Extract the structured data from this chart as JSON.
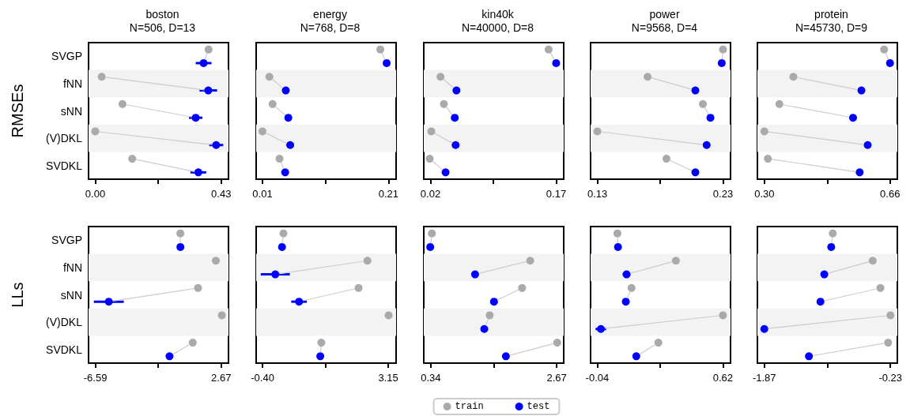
{
  "chart_data": [
    {
      "type": "scatter",
      "title": "boston",
      "subtitle": "N=506, D=13",
      "ylabel": "RMSEs",
      "orientation": "horizontal",
      "marker": "circle",
      "categories": [
        "SVGP",
        "fNN",
        "sNN",
        "(V)DKL",
        "SVDKL"
      ],
      "xlim": [
        -0.023,
        0.455
      ],
      "xticks": [
        {
          "value": 0,
          "label": "0.00"
        },
        {
          "value": 0.215,
          "label": null
        },
        {
          "value": 0.43,
          "label": "0.43"
        }
      ],
      "bands": [
        {
          "axis": "y",
          "from": "fNN",
          "to": "fNN",
          "color": "#f3f3f3"
        },
        {
          "axis": "y",
          "from": "(V)DKL",
          "to": "(V)DKL",
          "color": "#f3f3f3"
        }
      ],
      "series": [
        {
          "color": "#aaaaaa",
          "values": [
            0.387,
            0.022,
            0.093,
            0.0,
            0.126
          ]
        },
        {
          "color": "#0000ff",
          "values": [
            0.37,
            0.386,
            0.343,
            0.413,
            0.352
          ],
          "errors": [
            0.027,
            0.03,
            0.023,
            0.024,
            0.027
          ]
        }
      ]
    },
    {
      "type": "scatter",
      "title": "energy",
      "subtitle": "N=768, D=8",
      "orientation": "horizontal",
      "marker": "circle",
      "tick_labels": "x",
      "categories": [
        "SVGP",
        "fNN",
        "sNN",
        "(V)DKL",
        "SVDKL"
      ],
      "xlim": [
        0.0,
        0.222
      ],
      "xticks": [
        {
          "value": 0.01,
          "label": "0.01"
        },
        {
          "value": 0.11,
          "label": null
        },
        {
          "value": 0.21,
          "label": "0.21"
        }
      ],
      "bands": [
        {
          "axis": "y",
          "from": "fNN",
          "to": "fNN",
          "color": "#f3f3f3"
        },
        {
          "axis": "y",
          "from": "(V)DKL",
          "to": "(V)DKL",
          "color": "#f3f3f3"
        }
      ],
      "series": [
        {
          "color": "#aaaaaa",
          "values": [
            0.197,
            0.021,
            0.026,
            0.01,
            0.037
          ]
        },
        {
          "color": "#0000ff",
          "values": [
            0.207,
            0.047,
            0.051,
            0.054,
            0.046
          ]
        }
      ]
    },
    {
      "type": "scatter",
      "title": "kin40k",
      "subtitle": "N=40000, D=8",
      "orientation": "horizontal",
      "marker": "circle",
      "tick_labels": "x",
      "categories": [
        "SVGP",
        "fNN",
        "sNN",
        "(V)DKL",
        "SVDKL"
      ],
      "xlim": [
        0.012,
        0.179
      ],
      "xticks": [
        {
          "value": 0.02,
          "label": "0.02"
        },
        {
          "value": 0.095,
          "label": null
        },
        {
          "value": 0.17,
          "label": "0.17"
        }
      ],
      "bands": [
        {
          "axis": "y",
          "from": "fNN",
          "to": "fNN",
          "color": "#f3f3f3"
        },
        {
          "axis": "y",
          "from": "(V)DKL",
          "to": "(V)DKL",
          "color": "#f3f3f3"
        }
      ],
      "series": [
        {
          "color": "#aaaaaa",
          "values": [
            0.161,
            0.032,
            0.036,
            0.021,
            0.019
          ]
        },
        {
          "color": "#0000ff",
          "values": [
            0.17,
            0.051,
            0.049,
            0.05,
            0.038
          ]
        }
      ]
    },
    {
      "type": "scatter",
      "title": "power",
      "subtitle": "N=9568, D=4",
      "orientation": "horizontal",
      "marker": "circle",
      "tick_labels": "x",
      "categories": [
        "SVGP",
        "fNN",
        "sNN",
        "(V)DKL",
        "SVDKL"
      ],
      "xlim": [
        0.1246,
        0.236
      ],
      "xticks": [
        {
          "value": 0.13,
          "label": "0.13"
        },
        {
          "value": 0.18,
          "label": null
        },
        {
          "value": 0.23,
          "label": "0.23"
        }
      ],
      "bands": [
        {
          "axis": "y",
          "from": "fNN",
          "to": "fNN",
          "color": "#f3f3f3"
        },
        {
          "axis": "y",
          "from": "(V)DKL",
          "to": "(V)DKL",
          "color": "#f3f3f3"
        }
      ],
      "series": [
        {
          "color": "#aaaaaa",
          "values": [
            0.23,
            0.17,
            0.214,
            0.13,
            0.185
          ]
        },
        {
          "color": "#0000ff",
          "values": [
            0.229,
            0.208,
            0.22,
            0.217,
            0.208
          ]
        }
      ]
    },
    {
      "type": "scatter",
      "title": "protein",
      "subtitle": "N=45730, D=9",
      "orientation": "horizontal",
      "marker": "circle",
      "tick_labels": "x",
      "categories": [
        "SVGP",
        "fNN",
        "sNN",
        "(V)DKL",
        "SVDKL"
      ],
      "xlim": [
        0.28,
        0.681
      ],
      "xticks": [
        {
          "value": 0.3,
          "label": "0.30"
        },
        {
          "value": 0.48,
          "label": null
        },
        {
          "value": 0.66,
          "label": "0.66"
        }
      ],
      "bands": [
        {
          "axis": "y",
          "from": "fNN",
          "to": "fNN",
          "color": "#f3f3f3"
        },
        {
          "axis": "y",
          "from": "(V)DKL",
          "to": "(V)DKL",
          "color": "#f3f3f3"
        }
      ],
      "series": [
        {
          "color": "#aaaaaa",
          "values": [
            0.643,
            0.383,
            0.343,
            0.3,
            0.31
          ]
        },
        {
          "color": "#0000ff",
          "values": [
            0.66,
            0.578,
            0.554,
            0.596,
            0.573
          ]
        }
      ]
    },
    {
      "type": "scatter",
      "ylabel": "LLs",
      "orientation": "horizontal",
      "marker": "circle",
      "categories": [
        "SVGP",
        "fNN",
        "sNN",
        "(V)DKL",
        "SVDKL"
      ],
      "xlim": [
        -7.09,
        3.21
      ],
      "xticks": [
        {
          "value": -6.59,
          "label": "-6.59"
        },
        {
          "value": -1.96,
          "label": null
        },
        {
          "value": 2.67,
          "label": "2.67"
        }
      ],
      "bands": [
        {
          "axis": "y",
          "from": "fNN",
          "to": "fNN",
          "color": "#f3f3f3"
        },
        {
          "axis": "y",
          "from": "(V)DKL",
          "to": "(V)DKL",
          "color": "#f3f3f3"
        }
      ],
      "series": [
        {
          "color": "#aaaaaa",
          "values": [
            -0.33,
            2.28,
            0.97,
            2.72,
            0.58
          ]
        },
        {
          "color": "#0000ff",
          "values": [
            -0.33,
            null,
            -5.6,
            null,
            -1.13
          ],
          "errors": [
            null,
            null,
            1.1,
            null,
            0.26
          ]
        }
      ]
    },
    {
      "type": "scatter",
      "orientation": "horizontal",
      "marker": "circle",
      "tick_labels": "x",
      "categories": [
        "SVGP",
        "fNN",
        "sNN",
        "(V)DKL",
        "SVDKL"
      ],
      "xlim": [
        -0.58,
        3.37
      ],
      "xticks": [
        {
          "value": -0.4,
          "label": "-0.40"
        },
        {
          "value": 1.375,
          "label": null
        },
        {
          "value": 3.15,
          "label": "3.15"
        }
      ],
      "bands": [
        {
          "axis": "y",
          "from": "fNN",
          "to": "fNN",
          "color": "#f3f3f3"
        },
        {
          "axis": "y",
          "from": "(V)DKL",
          "to": "(V)DKL",
          "color": "#f3f3f3"
        }
      ],
      "series": [
        {
          "color": "#aaaaaa",
          "values": [
            0.19,
            2.56,
            2.31,
            3.16,
            1.26
          ]
        },
        {
          "color": "#0000ff",
          "values": [
            0.15,
            -0.04,
            0.63,
            null,
            1.23
          ],
          "errors": [
            null,
            0.41,
            0.22,
            null,
            null
          ]
        }
      ]
    },
    {
      "type": "scatter",
      "orientation": "horizontal",
      "marker": "circle",
      "tick_labels": "x",
      "legend": "bottom",
      "categories": [
        "SVGP",
        "fNN",
        "sNN",
        "(V)DKL",
        "SVDKL"
      ],
      "xlim": [
        0.21,
        2.8
      ],
      "xticks": [
        {
          "value": 0.34,
          "label": "0.34"
        },
        {
          "value": 1.505,
          "label": null
        },
        {
          "value": 2.67,
          "label": "2.67"
        }
      ],
      "bands": [
        {
          "axis": "y",
          "from": "fNN",
          "to": "fNN",
          "color": "#f3f3f3"
        },
        {
          "axis": "y",
          "from": "(V)DKL",
          "to": "(V)DKL",
          "color": "#f3f3f3"
        }
      ],
      "series": [
        {
          "name": "train",
          "color": "#aaaaaa",
          "values": [
            0.36,
            2.18,
            2.03,
            1.43,
            2.68
          ]
        },
        {
          "name": "test",
          "color": "#0000ff",
          "values": [
            0.33,
            1.16,
            1.51,
            1.33,
            1.73
          ]
        }
      ]
    },
    {
      "type": "scatter",
      "orientation": "horizontal",
      "marker": "circle",
      "tick_labels": "x",
      "categories": [
        "SVGP",
        "fNN",
        "sNN",
        "(V)DKL",
        "SVDKL"
      ],
      "xlim": [
        -0.075,
        0.66
      ],
      "xticks": [
        {
          "value": -0.04,
          "label": "-0.04"
        },
        {
          "value": 0.29,
          "label": null
        },
        {
          "value": 0.62,
          "label": "0.62"
        }
      ],
      "bands": [
        {
          "axis": "y",
          "from": "fNN",
          "to": "fNN",
          "color": "#f3f3f3"
        },
        {
          "axis": "y",
          "from": "(V)DKL",
          "to": "(V)DKL",
          "color": "#f3f3f3"
        }
      ],
      "series": [
        {
          "color": "#aaaaaa",
          "values": [
            0.066,
            0.373,
            0.14,
            0.62,
            0.281
          ]
        },
        {
          "color": "#0000ff",
          "values": [
            0.069,
            0.114,
            0.11,
            -0.021,
            0.165
          ],
          "errors": [
            null,
            0.02,
            null,
            0.028,
            null
          ]
        }
      ]
    },
    {
      "type": "scatter",
      "orientation": "horizontal",
      "marker": "circle",
      "tick_labels": "x",
      "categories": [
        "SVGP",
        "fNN",
        "sNN",
        "(V)DKL",
        "SVDKL"
      ],
      "xlim": [
        -1.96,
        -0.14
      ],
      "xticks": [
        {
          "value": -1.87,
          "label": "-1.87"
        },
        {
          "value": -1.05,
          "label": null
        },
        {
          "value": -0.23,
          "label": "-0.23"
        }
      ],
      "bands": [
        {
          "axis": "y",
          "from": "fNN",
          "to": "fNN",
          "color": "#f3f3f3"
        },
        {
          "axis": "y",
          "from": "(V)DKL",
          "to": "(V)DKL",
          "color": "#f3f3f3"
        }
      ],
      "series": [
        {
          "color": "#aaaaaa",
          "values": [
            -0.98,
            -0.46,
            -0.36,
            -0.23,
            -0.26
          ]
        },
        {
          "color": "#0000ff",
          "values": [
            -1.0,
            -1.09,
            -1.14,
            -1.87,
            -1.29
          ]
        }
      ]
    }
  ]
}
